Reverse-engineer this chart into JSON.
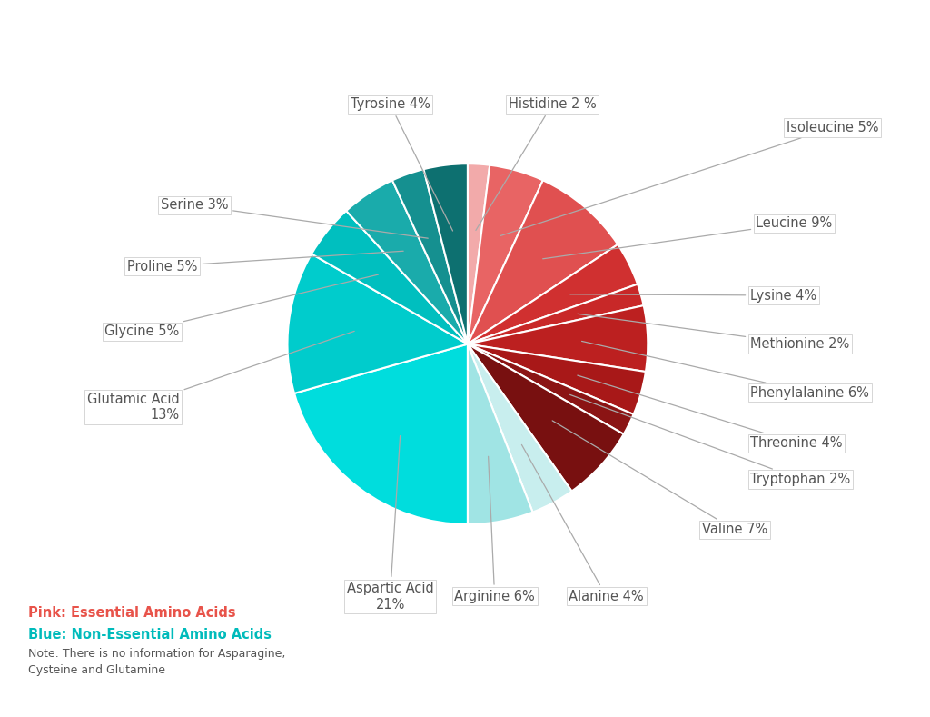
{
  "slices": [
    {
      "label": "Histidine 2 %",
      "value": 2,
      "color": "#F2AAAA"
    },
    {
      "label": "Isoleucine 5%",
      "value": 5,
      "color": "#E86464"
    },
    {
      "label": "Leucine 9%",
      "value": 9,
      "color": "#E05050"
    },
    {
      "label": "Lysine 4%",
      "value": 4,
      "color": "#D03030"
    },
    {
      "label": "Methionine 2%",
      "value": 2,
      "color": "#C82828"
    },
    {
      "label": "Phenylalanine 6%",
      "value": 6,
      "color": "#BC2020"
    },
    {
      "label": "Threonine 4%",
      "value": 4,
      "color": "#A81818"
    },
    {
      "label": "Tryptophan 2%",
      "value": 2,
      "color": "#8B1414"
    },
    {
      "label": "Valine 7%",
      "value": 7,
      "color": "#781010"
    },
    {
      "label": "Alanine 4%",
      "value": 4,
      "color": "#C8EEEE"
    },
    {
      "label": "Arginine 6%",
      "value": 6,
      "color": "#A0E4E4"
    },
    {
      "label": "Aspartic Acid\n21%",
      "value": 21,
      "color": "#00DDDD"
    },
    {
      "label": "Glutamic Acid\n13%",
      "value": 13,
      "color": "#00CCCC"
    },
    {
      "label": "Glycine 5%",
      "value": 5,
      "color": "#00BFBF"
    },
    {
      "label": "Proline 5%",
      "value": 5,
      "color": "#1AABAB"
    },
    {
      "label": "Serine 3%",
      "value": 3,
      "color": "#159090"
    },
    {
      "label": "Tyrosine 4%",
      "value": 4,
      "color": "#0D7070"
    }
  ],
  "background_color": "#FFFFFF",
  "label_color": "#555555",
  "legend_pink_label": "Pink: Essential Amino Acids",
  "legend_pink_color": "#E8534A",
  "legend_teal_label": "Blue: Non-Essential Amino Acids",
  "legend_teal_color": "#00BBBB",
  "legend_note1": "Note: There is no information for Asparagine,",
  "legend_note2": "Cysteine and Glutamine",
  "legend_note_color": "#555555"
}
